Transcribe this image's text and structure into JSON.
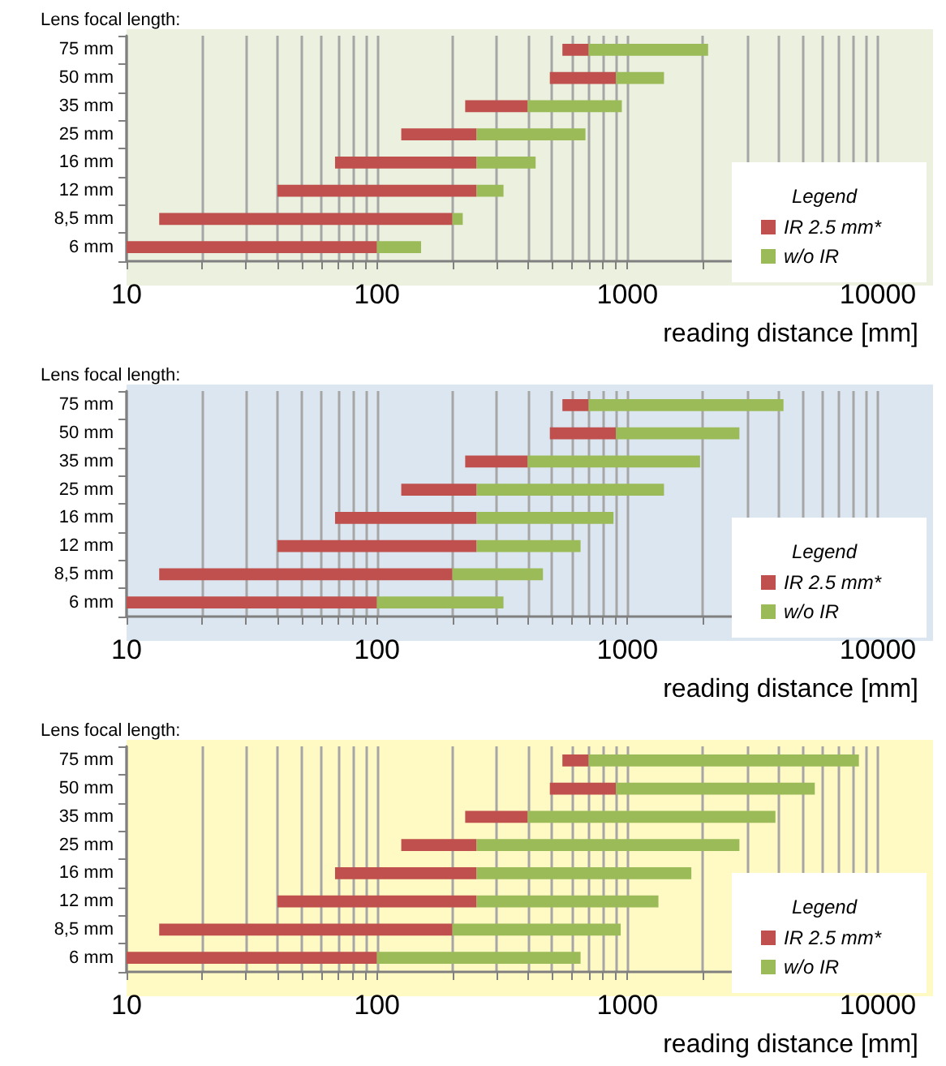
{
  "chart_data": [
    {
      "type": "bar",
      "orientation": "horizontal",
      "ylabel": "Lens focal length:",
      "xlabel": "reading distance [mm]",
      "legend_title": "Legend",
      "legend": "right",
      "grid": "x",
      "log": "x",
      "xlim": [
        10,
        10000
      ],
      "xticks": [
        10,
        {
          "value": 20,
          "label": null
        },
        {
          "value": 30,
          "label": null
        },
        {
          "value": 40,
          "label": null
        },
        {
          "value": 50,
          "label": null
        },
        {
          "value": 60,
          "label": null
        },
        {
          "value": 70,
          "label": null
        },
        {
          "value": 80,
          "label": null
        },
        {
          "value": 90,
          "label": null
        },
        100,
        {
          "value": 200,
          "label": null
        },
        {
          "value": 300,
          "label": null
        },
        {
          "value": 400,
          "label": null
        },
        {
          "value": 500,
          "label": null
        },
        {
          "value": 600,
          "label": null
        },
        {
          "value": 700,
          "label": null
        },
        {
          "value": 800,
          "label": null
        },
        {
          "value": 900,
          "label": null
        },
        1000,
        {
          "value": 2000,
          "label": null
        },
        {
          "value": 3000,
          "label": null
        },
        {
          "value": 4000,
          "label": null
        },
        {
          "value": 5000,
          "label": null
        },
        {
          "value": 6000,
          "label": null
        },
        {
          "value": 7000,
          "label": null
        },
        {
          "value": 8000,
          "label": null
        },
        {
          "value": 9000,
          "label": null
        },
        10000
      ],
      "categories": [
        "75 mm",
        "50 mm",
        "35 mm",
        "25 mm",
        "16 mm",
        "12 mm",
        "8,5 mm",
        "6 mm"
      ],
      "series": [
        {
          "name": "IR 2.5 mm*",
          "color": "#c0504d",
          "base": [
            550,
            490,
            225,
            125,
            68,
            40,
            13.5,
            10
          ],
          "values": [
            150,
            410,
            175,
            125,
            182,
            210,
            186.5,
            90
          ]
        },
        {
          "name": "w/o IR",
          "color": "#9bbb59",
          "base": [
            700,
            900,
            400,
            250,
            250,
            250,
            200,
            100
          ],
          "values": [
            1400,
            500,
            550,
            430,
            180,
            70,
            20,
            50
          ]
        }
      ]
    },
    {
      "type": "bar",
      "orientation": "horizontal",
      "ylabel": "Lens focal length:",
      "xlabel": "reading distance [mm]",
      "legend_title": "Legend",
      "legend": "right",
      "grid": "x",
      "log": "x",
      "xlim": [
        10,
        10000
      ],
      "xticks": [
        10,
        {
          "value": 20,
          "label": null
        },
        {
          "value": 30,
          "label": null
        },
        {
          "value": 40,
          "label": null
        },
        {
          "value": 50,
          "label": null
        },
        {
          "value": 60,
          "label": null
        },
        {
          "value": 70,
          "label": null
        },
        {
          "value": 80,
          "label": null
        },
        {
          "value": 90,
          "label": null
        },
        100,
        {
          "value": 200,
          "label": null
        },
        {
          "value": 300,
          "label": null
        },
        {
          "value": 400,
          "label": null
        },
        {
          "value": 500,
          "label": null
        },
        {
          "value": 600,
          "label": null
        },
        {
          "value": 700,
          "label": null
        },
        {
          "value": 800,
          "label": null
        },
        {
          "value": 900,
          "label": null
        },
        1000,
        {
          "value": 2000,
          "label": null
        },
        {
          "value": 3000,
          "label": null
        },
        {
          "value": 4000,
          "label": null
        },
        {
          "value": 5000,
          "label": null
        },
        {
          "value": 6000,
          "label": null
        },
        {
          "value": 7000,
          "label": null
        },
        {
          "value": 8000,
          "label": null
        },
        {
          "value": 9000,
          "label": null
        },
        10000
      ],
      "categories": [
        "75 mm",
        "50 mm",
        "35 mm",
        "25 mm",
        "16 mm",
        "12 mm",
        "8,5 mm",
        "6 mm"
      ],
      "series": [
        {
          "name": "IR 2.5 mm*",
          "color": "#c0504d",
          "base": [
            550,
            490,
            225,
            125,
            68,
            40,
            13.5,
            10
          ],
          "values": [
            150,
            410,
            175,
            125,
            182,
            210,
            186.5,
            90
          ]
        },
        {
          "name": "w/o IR",
          "color": "#9bbb59",
          "base": [
            700,
            900,
            400,
            250,
            250,
            250,
            200,
            100
          ],
          "values": [
            3500,
            1900,
            1550,
            1150,
            630,
            400,
            260,
            220
          ]
        }
      ]
    },
    {
      "type": "bar",
      "orientation": "horizontal",
      "ylabel": "Lens focal length:",
      "xlabel": "reading distance [mm]",
      "legend_title": "Legend",
      "legend": "right",
      "grid": "x",
      "log": "x",
      "xlim": [
        10,
        10000
      ],
      "xticks": [
        10,
        {
          "value": 20,
          "label": null
        },
        {
          "value": 30,
          "label": null
        },
        {
          "value": 40,
          "label": null
        },
        {
          "value": 50,
          "label": null
        },
        {
          "value": 60,
          "label": null
        },
        {
          "value": 70,
          "label": null
        },
        {
          "value": 80,
          "label": null
        },
        {
          "value": 90,
          "label": null
        },
        100,
        {
          "value": 200,
          "label": null
        },
        {
          "value": 300,
          "label": null
        },
        {
          "value": 400,
          "label": null
        },
        {
          "value": 500,
          "label": null
        },
        {
          "value": 600,
          "label": null
        },
        {
          "value": 700,
          "label": null
        },
        {
          "value": 800,
          "label": null
        },
        {
          "value": 900,
          "label": null
        },
        1000,
        {
          "value": 2000,
          "label": null
        },
        {
          "value": 3000,
          "label": null
        },
        {
          "value": 4000,
          "label": null
        },
        {
          "value": 5000,
          "label": null
        },
        {
          "value": 6000,
          "label": null
        },
        {
          "value": 7000,
          "label": null
        },
        {
          "value": 8000,
          "label": null
        },
        {
          "value": 9000,
          "label": null
        },
        10000
      ],
      "categories": [
        "75 mm",
        "50 mm",
        "35 mm",
        "25 mm",
        "16 mm",
        "12 mm",
        "8,5 mm",
        "6 mm"
      ],
      "series": [
        {
          "name": "IR 2.5 mm*",
          "color": "#c0504d",
          "base": [
            550,
            490,
            225,
            125,
            68,
            40,
            13.5,
            10
          ],
          "values": [
            150,
            410,
            175,
            125,
            182,
            210,
            186.5,
            90
          ]
        },
        {
          "name": "w/o IR",
          "color": "#9bbb59",
          "base": [
            700,
            900,
            400,
            250,
            250,
            250,
            200,
            100
          ],
          "values": [
            7700,
            4700,
            3500,
            2550,
            1550,
            1080,
            740,
            550
          ]
        }
      ]
    }
  ]
}
